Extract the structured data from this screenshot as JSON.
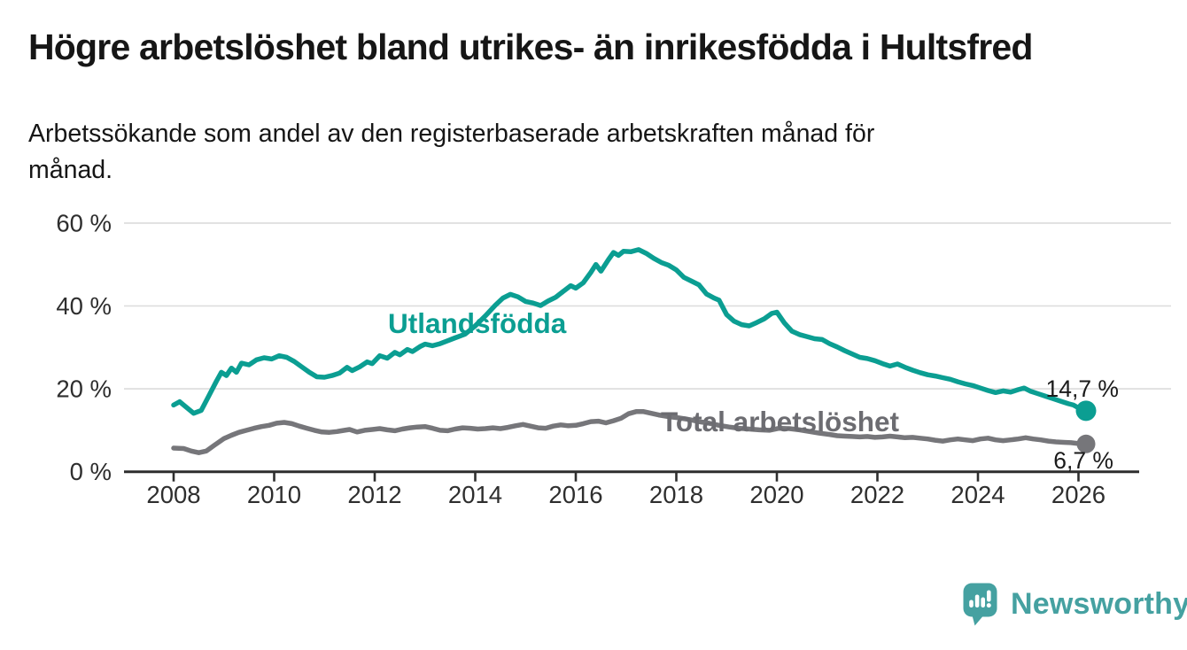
{
  "header": {
    "title": "Högre arbetslöshet bland utrikes- än inrikesfödda i Hultsfred",
    "subtitle_lines": [
      "Arbetssökande som andel av den registerbaserade arbetskraften månad för",
      "månad."
    ]
  },
  "chart_data": {
    "type": "line",
    "title": "Högre arbetslöshet bland utrikes- än inrikesfödda i Hultsfred",
    "subtitle": "Arbetssökande som andel av den registerbaserade arbetskraften månad för månad.",
    "grid": true,
    "legend_position": "direct-line-labels",
    "x_axis": {
      "unit": "year",
      "ticks": [
        2008,
        2010,
        2012,
        2014,
        2016,
        2018,
        2020,
        2022,
        2024,
        2026
      ],
      "range": [
        2007.0,
        2027.0
      ]
    },
    "y_axis": {
      "unit": "%",
      "ticks": [
        {
          "value": 0,
          "label": "0 %"
        },
        {
          "value": 20,
          "label": "20 %"
        },
        {
          "value": 40,
          "label": "40 %"
        },
        {
          "value": 60,
          "label": "60 %"
        }
      ],
      "gridlines": [
        20,
        40,
        60
      ],
      "range": [
        0,
        60
      ]
    },
    "series": [
      {
        "name": "utlandsfodda",
        "label": "Utlandsfödda",
        "color": "#0b9e92",
        "label_color": "#0b9e92",
        "end_label": "14,7 %",
        "end_value": 14.7,
        "points": [
          [
            2008.0,
            16.1
          ],
          [
            2008.12,
            16.9
          ],
          [
            2008.25,
            15.6
          ],
          [
            2008.4,
            14.1
          ],
          [
            2008.55,
            14.8
          ],
          [
            2008.7,
            18.3
          ],
          [
            2008.85,
            21.8
          ],
          [
            2008.95,
            24.0
          ],
          [
            2009.05,
            23.2
          ],
          [
            2009.15,
            25.0
          ],
          [
            2009.25,
            24.0
          ],
          [
            2009.35,
            26.2
          ],
          [
            2009.5,
            25.8
          ],
          [
            2009.65,
            27.0
          ],
          [
            2009.8,
            27.5
          ],
          [
            2009.95,
            27.2
          ],
          [
            2010.1,
            28.0
          ],
          [
            2010.25,
            27.6
          ],
          [
            2010.4,
            26.6
          ],
          [
            2010.55,
            25.3
          ],
          [
            2010.7,
            24.0
          ],
          [
            2010.85,
            22.9
          ],
          [
            2011.0,
            22.8
          ],
          [
            2011.15,
            23.2
          ],
          [
            2011.3,
            23.8
          ],
          [
            2011.45,
            25.2
          ],
          [
            2011.55,
            24.4
          ],
          [
            2011.7,
            25.3
          ],
          [
            2011.85,
            26.5
          ],
          [
            2011.95,
            26.1
          ],
          [
            2012.1,
            28.0
          ],
          [
            2012.25,
            27.4
          ],
          [
            2012.4,
            28.8
          ],
          [
            2012.5,
            28.2
          ],
          [
            2012.65,
            29.5
          ],
          [
            2012.75,
            29.0
          ],
          [
            2012.9,
            30.2
          ],
          [
            2013.0,
            30.8
          ],
          [
            2013.15,
            30.4
          ],
          [
            2013.3,
            30.9
          ],
          [
            2013.45,
            31.6
          ],
          [
            2013.6,
            32.3
          ],
          [
            2013.8,
            33.2
          ],
          [
            2014.0,
            35.2
          ],
          [
            2014.2,
            37.6
          ],
          [
            2014.4,
            40.2
          ],
          [
            2014.55,
            41.9
          ],
          [
            2014.7,
            42.8
          ],
          [
            2014.85,
            42.2
          ],
          [
            2015.0,
            41.1
          ],
          [
            2015.15,
            40.7
          ],
          [
            2015.3,
            40.1
          ],
          [
            2015.45,
            41.2
          ],
          [
            2015.6,
            42.1
          ],
          [
            2015.75,
            43.5
          ],
          [
            2015.9,
            44.9
          ],
          [
            2016.0,
            44.3
          ],
          [
            2016.15,
            45.6
          ],
          [
            2016.3,
            48.1
          ],
          [
            2016.4,
            50.0
          ],
          [
            2016.5,
            48.4
          ],
          [
            2016.65,
            51.2
          ],
          [
            2016.75,
            52.9
          ],
          [
            2016.85,
            52.2
          ],
          [
            2016.95,
            53.2
          ],
          [
            2017.1,
            53.1
          ],
          [
            2017.25,
            53.6
          ],
          [
            2017.4,
            52.7
          ],
          [
            2017.55,
            51.5
          ],
          [
            2017.7,
            50.5
          ],
          [
            2017.85,
            49.8
          ],
          [
            2018.0,
            48.7
          ],
          [
            2018.15,
            46.9
          ],
          [
            2018.3,
            46.0
          ],
          [
            2018.45,
            45.1
          ],
          [
            2018.6,
            42.9
          ],
          [
            2018.75,
            41.9
          ],
          [
            2018.85,
            41.4
          ],
          [
            2019.0,
            37.9
          ],
          [
            2019.15,
            36.3
          ],
          [
            2019.3,
            35.5
          ],
          [
            2019.45,
            35.2
          ],
          [
            2019.6,
            36.0
          ],
          [
            2019.75,
            36.9
          ],
          [
            2019.9,
            38.2
          ],
          [
            2020.0,
            38.5
          ],
          [
            2020.15,
            35.9
          ],
          [
            2020.3,
            33.9
          ],
          [
            2020.45,
            33.1
          ],
          [
            2020.6,
            32.6
          ],
          [
            2020.75,
            32.1
          ],
          [
            2020.9,
            31.9
          ],
          [
            2021.05,
            30.9
          ],
          [
            2021.2,
            30.1
          ],
          [
            2021.35,
            29.2
          ],
          [
            2021.5,
            28.4
          ],
          [
            2021.65,
            27.6
          ],
          [
            2021.8,
            27.3
          ],
          [
            2021.95,
            26.8
          ],
          [
            2022.1,
            26.1
          ],
          [
            2022.25,
            25.5
          ],
          [
            2022.4,
            26.0
          ],
          [
            2022.55,
            25.2
          ],
          [
            2022.7,
            24.5
          ],
          [
            2022.85,
            23.9
          ],
          [
            2023.0,
            23.4
          ],
          [
            2023.15,
            23.1
          ],
          [
            2023.3,
            22.7
          ],
          [
            2023.45,
            22.3
          ],
          [
            2023.6,
            21.7
          ],
          [
            2023.75,
            21.2
          ],
          [
            2023.9,
            20.8
          ],
          [
            2024.05,
            20.2
          ],
          [
            2024.2,
            19.6
          ],
          [
            2024.35,
            19.1
          ],
          [
            2024.5,
            19.5
          ],
          [
            2024.65,
            19.2
          ],
          [
            2024.8,
            19.8
          ],
          [
            2024.92,
            20.2
          ],
          [
            2025.05,
            19.4
          ],
          [
            2025.2,
            18.8
          ],
          [
            2025.35,
            18.2
          ],
          [
            2025.5,
            17.6
          ],
          [
            2025.65,
            17.0
          ],
          [
            2025.8,
            16.4
          ],
          [
            2025.9,
            16.1
          ],
          [
            2026.0,
            15.4
          ],
          [
            2026.15,
            14.7
          ]
        ]
      },
      {
        "name": "total-arbetsloshet",
        "label": "Total arbetslöshet",
        "color": "#76767a",
        "label_color": "#6c6c71",
        "end_label": "6,7 %",
        "end_value": 6.7,
        "points": [
          [
            2008.0,
            5.7
          ],
          [
            2008.2,
            5.6
          ],
          [
            2008.35,
            5.0
          ],
          [
            2008.5,
            4.6
          ],
          [
            2008.65,
            5.0
          ],
          [
            2008.8,
            6.3
          ],
          [
            2009.0,
            8.0
          ],
          [
            2009.15,
            8.8
          ],
          [
            2009.3,
            9.5
          ],
          [
            2009.45,
            10.0
          ],
          [
            2009.6,
            10.5
          ],
          [
            2009.75,
            10.9
          ],
          [
            2009.9,
            11.2
          ],
          [
            2010.05,
            11.7
          ],
          [
            2010.2,
            11.9
          ],
          [
            2010.35,
            11.6
          ],
          [
            2010.5,
            11.0
          ],
          [
            2010.65,
            10.5
          ],
          [
            2010.8,
            10.0
          ],
          [
            2010.95,
            9.6
          ],
          [
            2011.1,
            9.5
          ],
          [
            2011.25,
            9.7
          ],
          [
            2011.4,
            10.0
          ],
          [
            2011.5,
            10.2
          ],
          [
            2011.65,
            9.6
          ],
          [
            2011.8,
            10.0
          ],
          [
            2011.95,
            10.2
          ],
          [
            2012.1,
            10.4
          ],
          [
            2012.25,
            10.1
          ],
          [
            2012.4,
            9.9
          ],
          [
            2012.55,
            10.3
          ],
          [
            2012.7,
            10.6
          ],
          [
            2012.85,
            10.8
          ],
          [
            2013.0,
            10.9
          ],
          [
            2013.15,
            10.5
          ],
          [
            2013.3,
            10.0
          ],
          [
            2013.45,
            9.9
          ],
          [
            2013.6,
            10.3
          ],
          [
            2013.75,
            10.6
          ],
          [
            2013.9,
            10.5
          ],
          [
            2014.05,
            10.3
          ],
          [
            2014.2,
            10.4
          ],
          [
            2014.35,
            10.6
          ],
          [
            2014.5,
            10.4
          ],
          [
            2014.65,
            10.7
          ],
          [
            2014.8,
            11.1
          ],
          [
            2014.95,
            11.4
          ],
          [
            2015.1,
            11.0
          ],
          [
            2015.25,
            10.6
          ],
          [
            2015.4,
            10.5
          ],
          [
            2015.55,
            11.0
          ],
          [
            2015.7,
            11.3
          ],
          [
            2015.85,
            11.1
          ],
          [
            2016.0,
            11.2
          ],
          [
            2016.15,
            11.6
          ],
          [
            2016.3,
            12.1
          ],
          [
            2016.45,
            12.2
          ],
          [
            2016.6,
            11.8
          ],
          [
            2016.75,
            12.3
          ],
          [
            2016.9,
            12.9
          ],
          [
            2017.05,
            14.0
          ],
          [
            2017.2,
            14.5
          ],
          [
            2017.35,
            14.5
          ],
          [
            2017.5,
            14.1
          ],
          [
            2017.65,
            13.7
          ],
          [
            2017.85,
            13.3
          ],
          [
            2018.05,
            13.0
          ],
          [
            2018.25,
            12.6
          ],
          [
            2018.45,
            12.1
          ],
          [
            2018.65,
            11.7
          ],
          [
            2018.85,
            11.2
          ],
          [
            2019.05,
            10.8
          ],
          [
            2019.25,
            10.5
          ],
          [
            2019.45,
            10.3
          ],
          [
            2019.65,
            10.1
          ],
          [
            2019.85,
            10.0
          ],
          [
            2020.05,
            10.5
          ],
          [
            2020.25,
            10.4
          ],
          [
            2020.45,
            10.1
          ],
          [
            2020.65,
            9.7
          ],
          [
            2020.85,
            9.3
          ],
          [
            2021.05,
            9.0
          ],
          [
            2021.2,
            8.7
          ],
          [
            2021.35,
            8.6
          ],
          [
            2021.5,
            8.5
          ],
          [
            2021.65,
            8.4
          ],
          [
            2021.8,
            8.5
          ],
          [
            2021.95,
            8.3
          ],
          [
            2022.1,
            8.4
          ],
          [
            2022.25,
            8.6
          ],
          [
            2022.4,
            8.4
          ],
          [
            2022.55,
            8.2
          ],
          [
            2022.7,
            8.3
          ],
          [
            2022.85,
            8.1
          ],
          [
            2023.0,
            7.9
          ],
          [
            2023.15,
            7.6
          ],
          [
            2023.3,
            7.4
          ],
          [
            2023.45,
            7.7
          ],
          [
            2023.6,
            7.9
          ],
          [
            2023.75,
            7.7
          ],
          [
            2023.9,
            7.5
          ],
          [
            2024.05,
            7.9
          ],
          [
            2024.2,
            8.1
          ],
          [
            2024.35,
            7.7
          ],
          [
            2024.5,
            7.5
          ],
          [
            2024.65,
            7.7
          ],
          [
            2024.8,
            7.9
          ],
          [
            2024.95,
            8.2
          ],
          [
            2025.1,
            7.9
          ],
          [
            2025.25,
            7.7
          ],
          [
            2025.4,
            7.4
          ],
          [
            2025.55,
            7.2
          ],
          [
            2025.7,
            7.1
          ],
          [
            2025.85,
            7.0
          ],
          [
            2026.0,
            6.8
          ],
          [
            2026.15,
            6.7
          ]
        ]
      }
    ],
    "colors": {
      "axis": "#2e2e2e",
      "gridline": "#dcdcdc",
      "tick_label": "#2e2e2e",
      "end_label_text": "#1a1a1a",
      "background": "#ffffff"
    }
  },
  "branding": {
    "name": "Newsworthy",
    "logo_icon": "speech-bubble-bar-chart-icon",
    "color": "#45a1a1"
  }
}
